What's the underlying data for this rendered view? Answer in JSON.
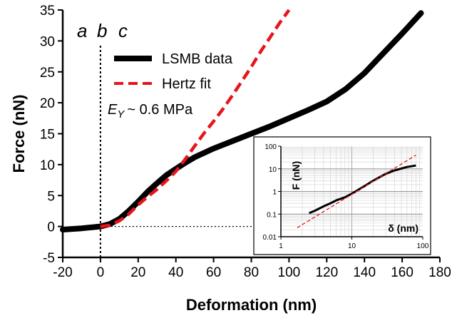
{
  "chart_data": [
    {
      "type": "line",
      "xlabel": "Deformation (nm)",
      "ylabel": "Force (nN)",
      "xlim": [
        -20,
        180
      ],
      "ylim": [
        -5,
        35
      ],
      "xticks": [
        "-20",
        "0",
        "20",
        "40",
        "60",
        "80",
        "100",
        "120",
        "140",
        "160",
        "180"
      ],
      "yticks": [
        "-5",
        "0",
        "5",
        "10",
        "15",
        "20",
        "25",
        "30",
        "35"
      ],
      "x_tick_values": [
        -20,
        0,
        20,
        40,
        60,
        80,
        100,
        120,
        140,
        160,
        180
      ],
      "y_tick_values": [
        -5,
        0,
        5,
        10,
        15,
        20,
        25,
        30,
        35
      ],
      "annotations": {
        "a": "a",
        "b": "b",
        "c": "c",
        "ey_symbol": "E",
        "ey_subscript": "Y",
        "ey_value": "~ 0.6 MPa"
      },
      "legend_placement": "top-left",
      "reference_lines": {
        "vertical_at_x": 0,
        "horizontal_at_y": 0
      },
      "series": [
        {
          "name": "LSMB data",
          "color": "#000000",
          "style": "thick-solid",
          "x": [
            -20,
            -10,
            0,
            5,
            10,
            15,
            20,
            25,
            30,
            35,
            40,
            45,
            50,
            60,
            70,
            80,
            90,
            100,
            110,
            120,
            130,
            140,
            150,
            160,
            170
          ],
          "y": [
            -0.5,
            -0.3,
            0,
            0.4,
            1.2,
            2.5,
            4.0,
            5.6,
            7.0,
            8.3,
            9.3,
            10.3,
            11.2,
            12.6,
            13.8,
            15.0,
            16.2,
            17.5,
            18.8,
            20.2,
            22.2,
            24.8,
            28.0,
            31.2,
            34.5
          ]
        },
        {
          "name": "Hertz fit",
          "color": "#e8141c",
          "style": "dashed",
          "x": [
            0,
            5,
            10,
            15,
            20,
            25,
            30,
            35,
            40,
            45,
            50,
            55,
            60,
            65,
            70,
            75,
            80,
            85,
            90,
            95,
            100
          ],
          "y": [
            0,
            0.2,
            0.9,
            2.0,
            3.5,
            4.8,
            6.0,
            7.4,
            8.9,
            10.9,
            13.0,
            15.1,
            17.0,
            19.0,
            21.2,
            23.5,
            25.8,
            28.3,
            30.6,
            32.9,
            35.0
          ]
        }
      ]
    },
    {
      "type": "line",
      "scale": "log-log",
      "xlabel": "δ (nm)",
      "ylabel": "F (nN)",
      "xlim": [
        1,
        100
      ],
      "ylim": [
        0.01,
        100
      ],
      "xticks": [
        "1",
        "10",
        "100"
      ],
      "yticks": [
        "0.01",
        "0.1",
        "1",
        "10",
        "100"
      ],
      "x_tick_values": [
        1,
        10,
        100
      ],
      "y_tick_values": [
        0.01,
        0.1,
        1,
        10,
        100
      ],
      "grid": true,
      "placement": "bottom-right",
      "series": [
        {
          "name": "LSMB data",
          "color": "#000000",
          "style": "solid",
          "x": [
            2.5,
            3,
            4,
            5,
            6,
            8,
            10,
            15,
            20,
            30,
            40,
            60,
            80
          ],
          "y": [
            0.11,
            0.14,
            0.22,
            0.3,
            0.4,
            0.55,
            0.8,
            1.7,
            3.0,
            6.0,
            8.5,
            12,
            14
          ]
        },
        {
          "name": "Hertz fit",
          "color": "#e8141c",
          "style": "dashed",
          "x": [
            1.7,
            80
          ],
          "y": [
            0.025,
            40
          ]
        }
      ]
    }
  ]
}
